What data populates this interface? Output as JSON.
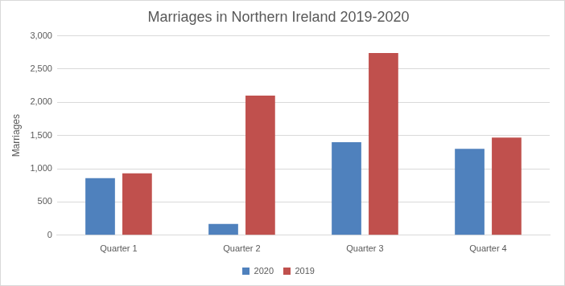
{
  "chart_data": {
    "type": "bar",
    "title": "Marriages in Northern Ireland 2019-2020",
    "y_label": "Marriages",
    "categories": [
      "Quarter 1",
      "Quarter 2",
      "Quarter 3",
      "Quarter 4"
    ],
    "series": [
      {
        "name": "2020",
        "color": "#4f81bd",
        "values": [
          860,
          170,
          1400,
          1300
        ]
      },
      {
        "name": "2019",
        "color": "#c0504d",
        "values": [
          930,
          2100,
          2740,
          1470
        ]
      }
    ],
    "ylim": [
      0,
      3000
    ],
    "yticks": [
      0,
      500,
      {
        "value": 1000,
        "label": "1,000"
      },
      {
        "value": 1500,
        "label": "1,500"
      },
      {
        "value": 2000,
        "label": "2,000"
      },
      {
        "value": 2500,
        "label": "2,500"
      },
      {
        "value": 3000,
        "label": "3,000"
      }
    ],
    "grid": true,
    "legend": "bottom"
  }
}
